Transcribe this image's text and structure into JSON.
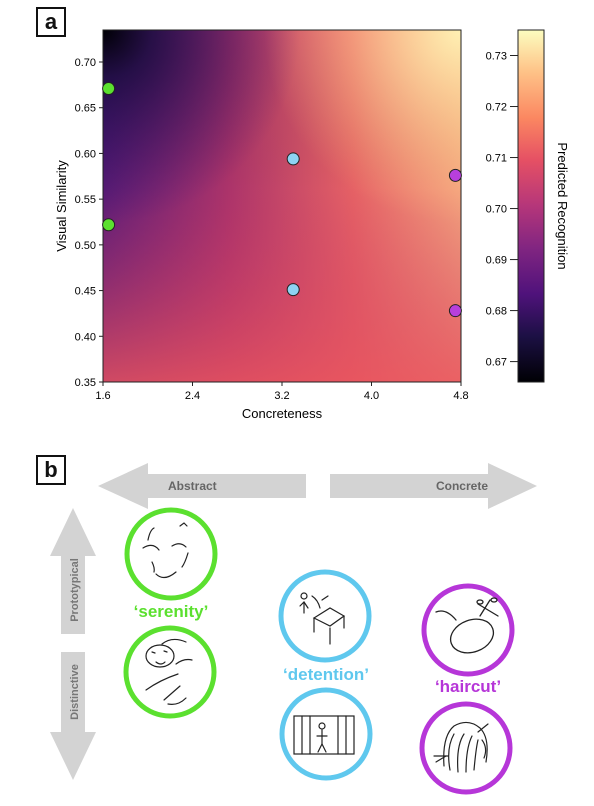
{
  "panel_a": {
    "label": "a",
    "chart_data": {
      "type": "heatmap",
      "xlabel": "Concreteness",
      "ylabel": "Visual Similarity",
      "xlim": [
        1.6,
        4.8
      ],
      "ylim": [
        0.35,
        0.735
      ],
      "xticks": [
        "1.6",
        "2.4",
        "3.2",
        "4.0",
        "4.8"
      ],
      "yticks": [
        "0.35",
        "0.40",
        "0.45",
        "0.50",
        "0.55",
        "0.60",
        "0.65",
        "0.70"
      ],
      "colorbar": {
        "label": "Predicted Recognition",
        "range": [
          0.666,
          0.735
        ],
        "ticks": [
          "0.67",
          "0.68",
          "0.69",
          "0.70",
          "0.71",
          "0.72",
          "0.73"
        ],
        "colormap": "magma"
      },
      "points": [
        {
          "x": 1.65,
          "y": 0.671,
          "color": "#5be02f"
        },
        {
          "x": 1.65,
          "y": 0.522,
          "color": "#5be02f"
        },
        {
          "x": 3.3,
          "y": 0.594,
          "color": "#8ed3f2"
        },
        {
          "x": 3.3,
          "y": 0.451,
          "color": "#8ed3f2"
        },
        {
          "x": 4.75,
          "y": 0.576,
          "color": "#b83fdc"
        },
        {
          "x": 4.75,
          "y": 0.428,
          "color": "#b83fdc"
        }
      ]
    }
  },
  "panel_b": {
    "label": "b",
    "arrow_abstract": "Abstract",
    "arrow_concrete": "Concrete",
    "arrow_prototypical": "Prototypical",
    "arrow_distinctive": "Distinctive",
    "words": {
      "serenity": {
        "text": "‘serenity’",
        "color": "#5be02f"
      },
      "detention": {
        "text": "‘detention’",
        "color": "#5fc8ee"
      },
      "haircut": {
        "text": "‘haircut’",
        "color": "#b636d8"
      }
    }
  }
}
